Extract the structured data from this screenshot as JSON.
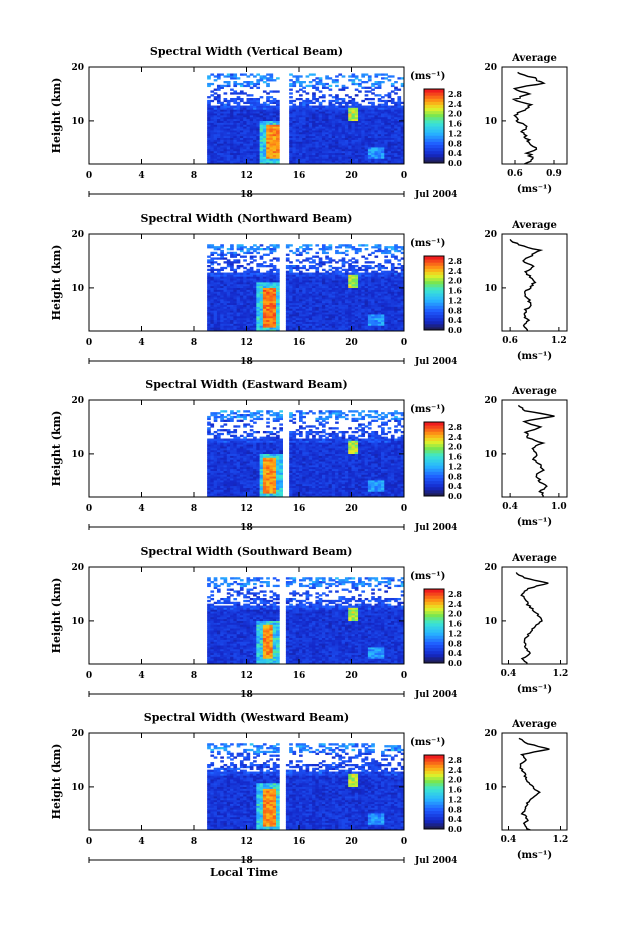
{
  "chart_data": [
    {
      "type": "heatmap",
      "title": "Spectral Width (Vertical Beam)",
      "ylabel": "Height (km)",
      "xticks": [
        "0",
        "4",
        "8",
        "12",
        "16",
        "20",
        "0"
      ],
      "yticks": [
        "10",
        "20"
      ],
      "xlim": [
        0,
        24
      ],
      "ylim": [
        2,
        20
      ],
      "date_label": "Jul 2004",
      "day_marker": "18",
      "colorbar": {
        "unit": "(ms⁻¹)",
        "ticks": [
          "0.0",
          "0.4",
          "0.8",
          "1.2",
          "1.6",
          "2.0",
          "2.4",
          "2.8"
        ],
        "range": [
          0,
          3.0
        ]
      },
      "data_start_hour": 9.0,
      "gap_hours": [
        14.5,
        15.2
      ],
      "upper_limit_km": 18.5,
      "storm": {
        "hour": 13.8,
        "height_km": [
          3,
          9
        ],
        "value": 2.8
      },
      "profile": {
        "title": "Average",
        "xlabel": "(ms⁻¹)",
        "xticks": [
          "0.6",
          "0.9"
        ],
        "xlim": [
          0.5,
          1.0
        ],
        "yticks": [
          "10",
          "20"
        ],
        "heights": [
          2,
          3,
          4,
          5,
          6,
          7,
          8,
          9,
          10,
          11,
          12,
          13,
          14,
          15,
          16,
          17,
          18,
          19
        ],
        "values": [
          0.68,
          0.74,
          0.7,
          0.76,
          0.72,
          0.68,
          0.64,
          0.7,
          0.62,
          0.6,
          0.66,
          0.72,
          0.6,
          0.7,
          0.58,
          0.82,
          0.74,
          0.62
        ]
      }
    },
    {
      "type": "heatmap",
      "title": "Spectral Width (Northward Beam)",
      "ylabel": "Height (km)",
      "xticks": [
        "0",
        "4",
        "8",
        "12",
        "16",
        "20",
        "0"
      ],
      "yticks": [
        "10",
        "20"
      ],
      "xlim": [
        0,
        24
      ],
      "ylim": [
        2,
        20
      ],
      "date_label": "Jul 2004",
      "day_marker": "18",
      "colorbar": {
        "unit": "(ms⁻¹)",
        "ticks": [
          "0.0",
          "0.4",
          "0.8",
          "1.2",
          "1.6",
          "2.0",
          "2.4",
          "2.8"
        ],
        "range": [
          0,
          3.0
        ]
      },
      "data_start_hour": 9.0,
      "gap_hours": [
        14.3,
        14.9
      ],
      "upper_limit_km": 18.0,
      "storm": {
        "hour": 13.6,
        "height_km": [
          2.5,
          10
        ],
        "value": 2.9
      },
      "profile": {
        "title": "Average",
        "xlabel": "(ms⁻¹)",
        "xticks": [
          "0.6",
          "1.2"
        ],
        "xlim": [
          0.5,
          1.3
        ],
        "yticks": [
          "10",
          "20"
        ],
        "heights": [
          2,
          3,
          4,
          5,
          6,
          7,
          8,
          9,
          10,
          11,
          12,
          13,
          14,
          15,
          16,
          17,
          18,
          19
        ],
        "values": [
          0.8,
          0.78,
          0.82,
          0.76,
          0.8,
          0.86,
          0.82,
          0.78,
          0.84,
          0.9,
          0.84,
          0.8,
          0.88,
          0.74,
          0.86,
          0.96,
          0.7,
          0.6
        ]
      }
    },
    {
      "type": "heatmap",
      "title": "Spectral Width (Eastward Beam)",
      "ylabel": "Height (km)",
      "xticks": [
        "0",
        "4",
        "8",
        "12",
        "16",
        "20",
        "0"
      ],
      "yticks": [
        "10",
        "20"
      ],
      "xlim": [
        0,
        24
      ],
      "ylim": [
        2,
        20
      ],
      "date_label": "Jul 2004",
      "day_marker": "18",
      "colorbar": {
        "unit": "(ms⁻¹)",
        "ticks": [
          "0.0",
          "0.4",
          "0.8",
          "1.2",
          "1.6",
          "2.0",
          "2.4",
          "2.8"
        ],
        "range": [
          0,
          3.0
        ]
      },
      "data_start_hour": 9.0,
      "gap_hours": [
        14.6,
        15.1
      ],
      "upper_limit_km": 18.0,
      "storm": {
        "hour": 13.7,
        "height_km": [
          2.5,
          9
        ],
        "value": 2.8
      },
      "profile": {
        "title": "Average",
        "xlabel": "(ms⁻¹)",
        "xticks": [
          "0.4",
          "1.0"
        ],
        "xlim": [
          0.3,
          1.1
        ],
        "yticks": [
          "10",
          "20"
        ],
        "heights": [
          2,
          3,
          4,
          5,
          6,
          7,
          8,
          9,
          10,
          11,
          12,
          13,
          14,
          15,
          16,
          17,
          18,
          19
        ],
        "values": [
          0.82,
          0.78,
          0.84,
          0.76,
          0.72,
          0.8,
          0.76,
          0.7,
          0.74,
          0.66,
          0.8,
          0.62,
          0.6,
          0.78,
          0.56,
          0.94,
          0.6,
          0.5
        ]
      }
    },
    {
      "type": "heatmap",
      "title": "Spectral Width (Southward Beam)",
      "ylabel": "Height (km)",
      "xticks": [
        "0",
        "4",
        "8",
        "12",
        "16",
        "20",
        "0"
      ],
      "yticks": [
        "10",
        "20"
      ],
      "xlim": [
        0,
        24
      ],
      "ylim": [
        2,
        20
      ],
      "date_label": "Jul 2004",
      "day_marker": "18",
      "colorbar": {
        "unit": "(ms⁻¹)",
        "ticks": [
          "0.0",
          "0.4",
          "0.8",
          "1.2",
          "1.6",
          "2.0",
          "2.4",
          "2.8"
        ],
        "range": [
          0,
          3.0
        ]
      },
      "data_start_hour": 9.0,
      "gap_hours": [
        14.5,
        15.0
      ],
      "upper_limit_km": 18.0,
      "storm": {
        "hour": 13.5,
        "height_km": [
          3,
          9
        ],
        "value": 2.8
      },
      "profile": {
        "title": "Average",
        "xlabel": "(ms⁻¹)",
        "xticks": [
          "0.4",
          "1.2"
        ],
        "xlim": [
          0.3,
          1.3
        ],
        "yticks": [
          "10",
          "20"
        ],
        "heights": [
          2,
          3,
          4,
          5,
          6,
          7,
          8,
          9,
          10,
          11,
          12,
          13,
          14,
          15,
          16,
          17,
          18,
          19
        ],
        "values": [
          0.7,
          0.62,
          0.72,
          0.66,
          0.64,
          0.68,
          0.74,
          0.82,
          0.92,
          0.86,
          0.78,
          0.7,
          0.66,
          0.6,
          0.7,
          1.0,
          0.64,
          0.52
        ]
      }
    },
    {
      "type": "heatmap",
      "title": "Spectral Width (Westward Beam)",
      "ylabel": "Height (km)",
      "xticks": [
        "0",
        "4",
        "8",
        "12",
        "16",
        "20",
        "0"
      ],
      "yticks": [
        "10",
        "20"
      ],
      "xlim": [
        0,
        24
      ],
      "ylim": [
        2,
        20
      ],
      "date_label": "Jul 2004",
      "day_marker": "18",
      "xlabel": "Local Time",
      "colorbar": {
        "unit": "(ms⁻¹)",
        "ticks": [
          "0.0",
          "0.4",
          "0.8",
          "1.2",
          "1.6",
          "2.0",
          "2.4",
          "2.8"
        ],
        "range": [
          0,
          3.0
        ]
      },
      "data_start_hour": 9.0,
      "gap_hours": [
        14.4,
        14.9
      ],
      "upper_limit_km": 18.0,
      "storm": {
        "hour": 13.6,
        "height_km": [
          2.5,
          9.5
        ],
        "value": 2.8
      },
      "profile": {
        "title": "Average",
        "xlabel": "(ms⁻¹)",
        "xticks": [
          "0.4",
          "1.2"
        ],
        "xlim": [
          0.3,
          1.3
        ],
        "yticks": [
          "10",
          "20"
        ],
        "heights": [
          2,
          3,
          4,
          5,
          6,
          7,
          8,
          9,
          10,
          11,
          12,
          13,
          14,
          15,
          16,
          17,
          18,
          19
        ],
        "values": [
          0.72,
          0.64,
          0.7,
          0.62,
          0.66,
          0.7,
          0.76,
          0.86,
          0.78,
          0.7,
          0.66,
          0.62,
          0.58,
          0.66,
          0.6,
          1.02,
          0.7,
          0.56
        ]
      }
    }
  ]
}
